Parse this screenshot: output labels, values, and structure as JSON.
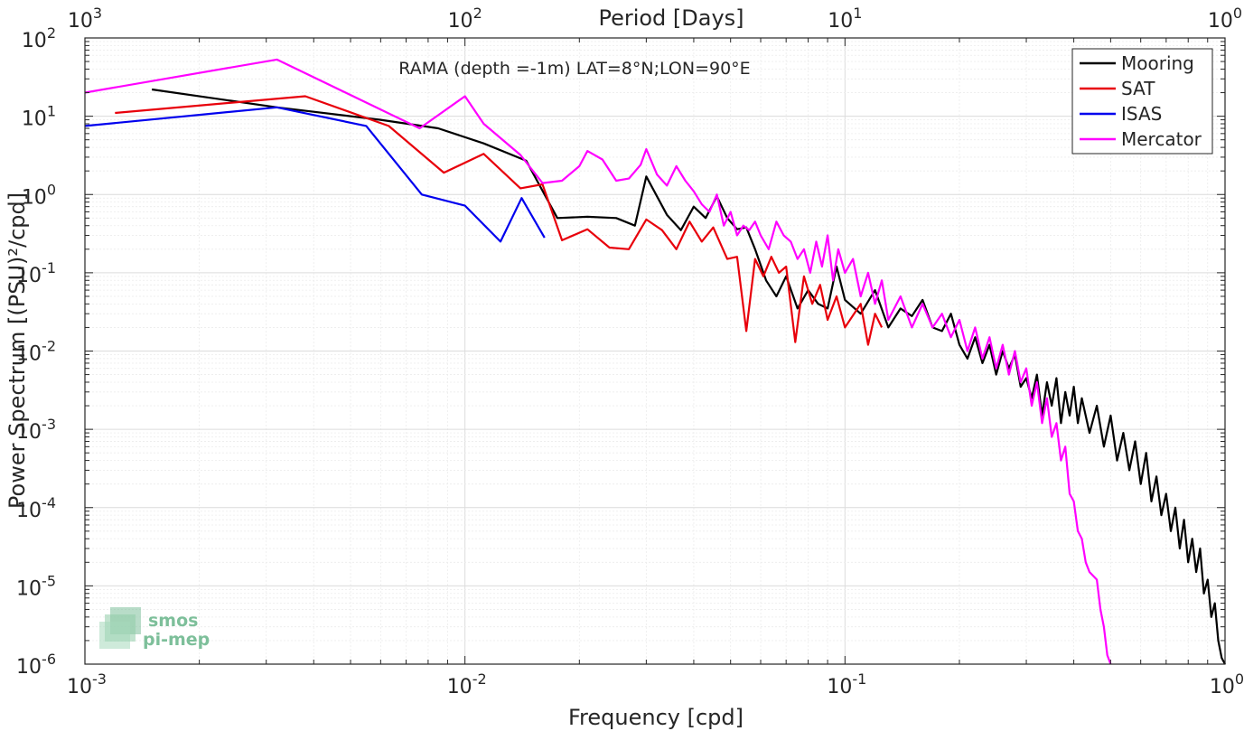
{
  "chart_data": {
    "type": "line",
    "title": "RAMA (depth =-1m) LAT=8°N;LON=90°E",
    "xlabel": "Frequency [cpd]",
    "ylabel": "Power Spectrum [(PSU)²/cpd]",
    "x2label": "Period [Days]",
    "xscale": "log",
    "yscale": "log",
    "xlim": [
      0.001,
      1
    ],
    "ylim": [
      1e-06,
      100
    ],
    "grid": true,
    "legend_position": "top-right",
    "x_ticks": [
      {
        "value": 0.001,
        "base": "10",
        "exp": "-3"
      },
      {
        "value": 0.01,
        "base": "10",
        "exp": "-2"
      },
      {
        "value": 0.1,
        "base": "10",
        "exp": "-1"
      },
      {
        "value": 1,
        "base": "10",
        "exp": "0"
      }
    ],
    "x2_ticks": [
      {
        "value": 0.001,
        "base": "10",
        "exp": "3"
      },
      {
        "value": 0.01,
        "base": "10",
        "exp": "2"
      },
      {
        "value": 0.1,
        "base": "10",
        "exp": "1"
      },
      {
        "value": 1,
        "base": "10",
        "exp": "0"
      }
    ],
    "y_ticks": [
      {
        "value": 100,
        "base": "10",
        "exp": "2"
      },
      {
        "value": 10,
        "base": "10",
        "exp": "1"
      },
      {
        "value": 1,
        "base": "10",
        "exp": "0"
      },
      {
        "value": 0.1,
        "base": "10",
        "exp": "-1"
      },
      {
        "value": 0.01,
        "base": "10",
        "exp": "-2"
      },
      {
        "value": 0.001,
        "base": "10",
        "exp": "-3"
      },
      {
        "value": 0.0001,
        "base": "10",
        "exp": "-4"
      },
      {
        "value": 1e-05,
        "base": "10",
        "exp": "-5"
      },
      {
        "value": 1e-06,
        "base": "10",
        "exp": "-6"
      }
    ],
    "series": [
      {
        "name": "Mooring",
        "color": "#000000",
        "points": [
          [
            0.0015,
            22
          ],
          [
            0.0032,
            13
          ],
          [
            0.006,
            9
          ],
          [
            0.0085,
            7
          ],
          [
            0.0112,
            4.5
          ],
          [
            0.0145,
            2.7
          ],
          [
            0.0175,
            0.5
          ],
          [
            0.021,
            0.52
          ],
          [
            0.025,
            0.5
          ],
          [
            0.028,
            0.4
          ],
          [
            0.03,
            1.7
          ],
          [
            0.034,
            0.55
          ],
          [
            0.037,
            0.35
          ],
          [
            0.04,
            0.7
          ],
          [
            0.043,
            0.5
          ],
          [
            0.046,
            0.95
          ],
          [
            0.049,
            0.5
          ],
          [
            0.052,
            0.36
          ],
          [
            0.055,
            0.38
          ],
          [
            0.058,
            0.2
          ],
          [
            0.062,
            0.08
          ],
          [
            0.066,
            0.05
          ],
          [
            0.07,
            0.09
          ],
          [
            0.075,
            0.035
          ],
          [
            0.08,
            0.06
          ],
          [
            0.085,
            0.04
          ],
          [
            0.09,
            0.035
          ],
          [
            0.095,
            0.12
          ],
          [
            0.1,
            0.045
          ],
          [
            0.11,
            0.03
          ],
          [
            0.12,
            0.06
          ],
          [
            0.13,
            0.02
          ],
          [
            0.14,
            0.035
          ],
          [
            0.15,
            0.028
          ],
          [
            0.16,
            0.045
          ],
          [
            0.17,
            0.02
          ],
          [
            0.18,
            0.018
          ],
          [
            0.19,
            0.03
          ],
          [
            0.2,
            0.012
          ],
          [
            0.21,
            0.008
          ],
          [
            0.22,
            0.015
          ],
          [
            0.23,
            0.007
          ],
          [
            0.24,
            0.012
          ],
          [
            0.25,
            0.005
          ],
          [
            0.26,
            0.01
          ],
          [
            0.27,
            0.006
          ],
          [
            0.28,
            0.009
          ],
          [
            0.29,
            0.0035
          ],
          [
            0.3,
            0.0045
          ],
          [
            0.31,
            0.0025
          ],
          [
            0.32,
            0.005
          ],
          [
            0.33,
            0.0015
          ],
          [
            0.34,
            0.004
          ],
          [
            0.35,
            0.002
          ],
          [
            0.36,
            0.0045
          ],
          [
            0.37,
            0.0012
          ],
          [
            0.38,
            0.003
          ],
          [
            0.39,
            0.0015
          ],
          [
            0.4,
            0.0035
          ],
          [
            0.41,
            0.0012
          ],
          [
            0.42,
            0.0025
          ],
          [
            0.44,
            0.0009
          ],
          [
            0.46,
            0.002
          ],
          [
            0.48,
            0.0006
          ],
          [
            0.5,
            0.0015
          ],
          [
            0.52,
            0.0004
          ],
          [
            0.54,
            0.0009
          ],
          [
            0.56,
            0.0003
          ],
          [
            0.58,
            0.0007
          ],
          [
            0.6,
            0.0002
          ],
          [
            0.62,
            0.0005
          ],
          [
            0.64,
            0.00012
          ],
          [
            0.66,
            0.00025
          ],
          [
            0.68,
            8e-05
          ],
          [
            0.7,
            0.00015
          ],
          [
            0.72,
            5e-05
          ],
          [
            0.74,
            0.0001
          ],
          [
            0.76,
            3e-05
          ],
          [
            0.78,
            7e-05
          ],
          [
            0.8,
            2e-05
          ],
          [
            0.82,
            4e-05
          ],
          [
            0.84,
            1.5e-05
          ],
          [
            0.86,
            3e-05
          ],
          [
            0.88,
            8e-06
          ],
          [
            0.9,
            1.2e-05
          ],
          [
            0.92,
            4e-06
          ],
          [
            0.94,
            6e-06
          ],
          [
            0.96,
            2e-06
          ],
          [
            0.98,
            1.2e-06
          ],
          [
            1.0,
            1e-06
          ]
        ]
      },
      {
        "name": "SAT",
        "color": "#e8000b",
        "points": [
          [
            0.0012,
            11
          ],
          [
            0.0038,
            18
          ],
          [
            0.0063,
            7.5
          ],
          [
            0.0088,
            1.9
          ],
          [
            0.0112,
            3.3
          ],
          [
            0.014,
            1.2
          ],
          [
            0.016,
            1.35
          ],
          [
            0.018,
            0.26
          ],
          [
            0.021,
            0.36
          ],
          [
            0.024,
            0.21
          ],
          [
            0.027,
            0.2
          ],
          [
            0.03,
            0.48
          ],
          [
            0.033,
            0.35
          ],
          [
            0.036,
            0.2
          ],
          [
            0.039,
            0.45
          ],
          [
            0.042,
            0.25
          ],
          [
            0.045,
            0.38
          ],
          [
            0.049,
            0.15
          ],
          [
            0.052,
            0.16
          ],
          [
            0.055,
            0.018
          ],
          [
            0.058,
            0.15
          ],
          [
            0.061,
            0.09
          ],
          [
            0.064,
            0.16
          ],
          [
            0.067,
            0.1
          ],
          [
            0.07,
            0.12
          ],
          [
            0.074,
            0.013
          ],
          [
            0.078,
            0.09
          ],
          [
            0.082,
            0.04
          ],
          [
            0.086,
            0.07
          ],
          [
            0.09,
            0.025
          ],
          [
            0.095,
            0.05
          ],
          [
            0.1,
            0.02
          ],
          [
            0.11,
            0.04
          ],
          [
            0.115,
            0.012
          ],
          [
            0.12,
            0.03
          ],
          [
            0.125,
            0.02
          ]
        ]
      },
      {
        "name": "ISAS",
        "color": "#0000ee",
        "points": [
          [
            0.001,
            7.5
          ],
          [
            0.0032,
            13
          ],
          [
            0.0055,
            7.5
          ],
          [
            0.0077,
            1.0
          ],
          [
            0.01,
            0.72
          ],
          [
            0.0124,
            0.25
          ],
          [
            0.0141,
            0.9
          ],
          [
            0.0162,
            0.28
          ]
        ]
      },
      {
        "name": "Mercator",
        "color": "#ff00ff",
        "points": [
          [
            0.001,
            20
          ],
          [
            0.0032,
            53
          ],
          [
            0.0076,
            7
          ],
          [
            0.01,
            18
          ],
          [
            0.0112,
            8
          ],
          [
            0.014,
            3.2
          ],
          [
            0.016,
            1.4
          ],
          [
            0.018,
            1.5
          ],
          [
            0.02,
            2.3
          ],
          [
            0.021,
            3.6
          ],
          [
            0.023,
            2.8
          ],
          [
            0.025,
            1.5
          ],
          [
            0.027,
            1.6
          ],
          [
            0.029,
            2.4
          ],
          [
            0.03,
            3.8
          ],
          [
            0.032,
            1.8
          ],
          [
            0.034,
            1.3
          ],
          [
            0.036,
            2.3
          ],
          [
            0.038,
            1.5
          ],
          [
            0.04,
            1.1
          ],
          [
            0.042,
            0.75
          ],
          [
            0.044,
            0.6
          ],
          [
            0.046,
            1.0
          ],
          [
            0.048,
            0.4
          ],
          [
            0.05,
            0.6
          ],
          [
            0.052,
            0.3
          ],
          [
            0.054,
            0.4
          ],
          [
            0.056,
            0.35
          ],
          [
            0.058,
            0.45
          ],
          [
            0.06,
            0.3
          ],
          [
            0.063,
            0.2
          ],
          [
            0.066,
            0.45
          ],
          [
            0.069,
            0.3
          ],
          [
            0.072,
            0.25
          ],
          [
            0.075,
            0.15
          ],
          [
            0.078,
            0.2
          ],
          [
            0.081,
            0.1
          ],
          [
            0.084,
            0.25
          ],
          [
            0.087,
            0.12
          ],
          [
            0.09,
            0.3
          ],
          [
            0.093,
            0.08
          ],
          [
            0.096,
            0.2
          ],
          [
            0.1,
            0.1
          ],
          [
            0.105,
            0.15
          ],
          [
            0.11,
            0.05
          ],
          [
            0.115,
            0.1
          ],
          [
            0.12,
            0.04
          ],
          [
            0.125,
            0.08
          ],
          [
            0.13,
            0.025
          ],
          [
            0.14,
            0.05
          ],
          [
            0.15,
            0.02
          ],
          [
            0.16,
            0.04
          ],
          [
            0.17,
            0.02
          ],
          [
            0.18,
            0.03
          ],
          [
            0.19,
            0.015
          ],
          [
            0.2,
            0.025
          ],
          [
            0.21,
            0.01
          ],
          [
            0.22,
            0.02
          ],
          [
            0.23,
            0.008
          ],
          [
            0.24,
            0.015
          ],
          [
            0.25,
            0.006
          ],
          [
            0.26,
            0.012
          ],
          [
            0.27,
            0.005
          ],
          [
            0.28,
            0.01
          ],
          [
            0.29,
            0.004
          ],
          [
            0.3,
            0.006
          ],
          [
            0.31,
            0.002
          ],
          [
            0.32,
            0.004
          ],
          [
            0.33,
            0.0012
          ],
          [
            0.34,
            0.0025
          ],
          [
            0.35,
            0.0008
          ],
          [
            0.36,
            0.0012
          ],
          [
            0.37,
            0.0004
          ],
          [
            0.38,
            0.0006
          ],
          [
            0.39,
            0.00015
          ],
          [
            0.4,
            0.00012
          ],
          [
            0.41,
            5e-05
          ],
          [
            0.42,
            4e-05
          ],
          [
            0.43,
            2e-05
          ],
          [
            0.44,
            1.5e-05
          ],
          [
            0.46,
            1.2e-05
          ],
          [
            0.47,
            5e-06
          ],
          [
            0.48,
            3e-06
          ],
          [
            0.49,
            1.3e-06
          ],
          [
            0.5,
            1e-06
          ]
        ]
      }
    ]
  },
  "logo": {
    "line1": "smos",
    "line2": "pi-mep"
  }
}
